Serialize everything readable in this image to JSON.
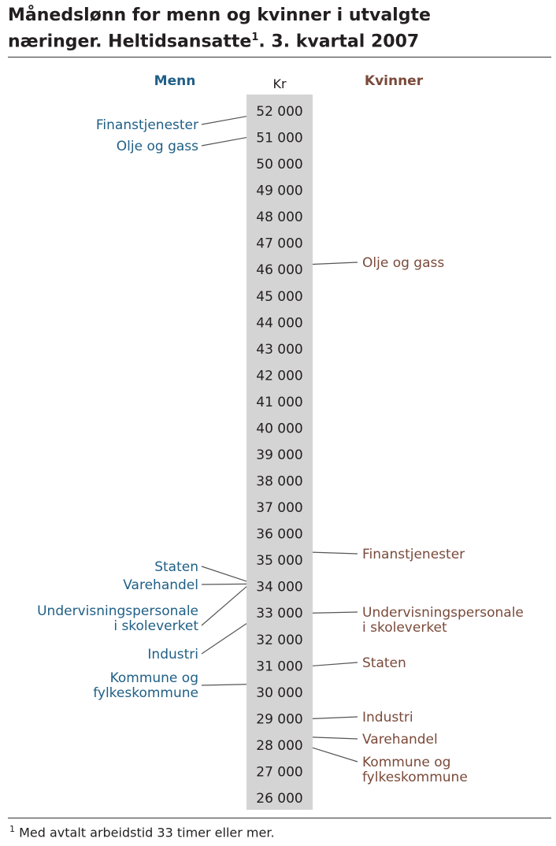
{
  "title_line1": "Månedslønn for menn og kvinner i utvalgte",
  "title_line2_prefix": "næringer. Heltidsansatte",
  "title_sup": "1",
  "title_line2_suffix": ". 3. kvartal 2007",
  "footnote_mark": "1",
  "footnote_text": " Med avtalt arbeidstid 33 timer eller mer.",
  "colors": {
    "men": "#1f5f86",
    "women": "#7a4a3a",
    "scale_bg": "#d4d4d4",
    "text": "#231f20",
    "line": "#555555"
  },
  "chart_data": {
    "type": "table",
    "unit": "Kr",
    "header_men": "Menn",
    "header_women": "Kvinner",
    "scale": {
      "min": 26000,
      "max": 52000,
      "step": 1000
    },
    "ticks": [
      "52 000",
      "51 000",
      "50 000",
      "49 000",
      "48 000",
      "47 000",
      "46 000",
      "45 000",
      "44 000",
      "43 000",
      "42 000",
      "41 000",
      "40 000",
      "39 000",
      "38 000",
      "37 000",
      "36 000",
      "35 000",
      "34 000",
      "33 000",
      "32 000",
      "31 000",
      "30 000",
      "29 000",
      "28 000",
      "27 000",
      "26 000"
    ],
    "men": [
      {
        "label": [
          "Finanstjenester"
        ],
        "value": 51800
      },
      {
        "label": [
          "Olje og gass"
        ],
        "value": 51000
      },
      {
        "label": [
          "Staten"
        ],
        "value": 34200
      },
      {
        "label": [
          "Varehandel"
        ],
        "value": 34100
      },
      {
        "label": [
          "Undervisningspersonale",
          "i skoleverket"
        ],
        "value": 34000
      },
      {
        "label": [
          "Industri"
        ],
        "value": 32600
      },
      {
        "label": [
          "Kommune og",
          "fylkeskommune"
        ],
        "value": 30300
      }
    ],
    "women": [
      {
        "label": [
          "Olje og gass"
        ],
        "value": 46200
      },
      {
        "label": [
          "Finanstjenester"
        ],
        "value": 35300
      },
      {
        "label": [
          "Undervisningspersonale",
          "i skoleverket"
        ],
        "value": 33000
      },
      {
        "label": [
          "Staten"
        ],
        "value": 31000
      },
      {
        "label": [
          "Industri"
        ],
        "value": 29000
      },
      {
        "label": [
          "Varehandel"
        ],
        "value": 28300
      },
      {
        "label": [
          "Kommune og",
          "fylkeskommune"
        ],
        "value": 27900
      }
    ]
  }
}
